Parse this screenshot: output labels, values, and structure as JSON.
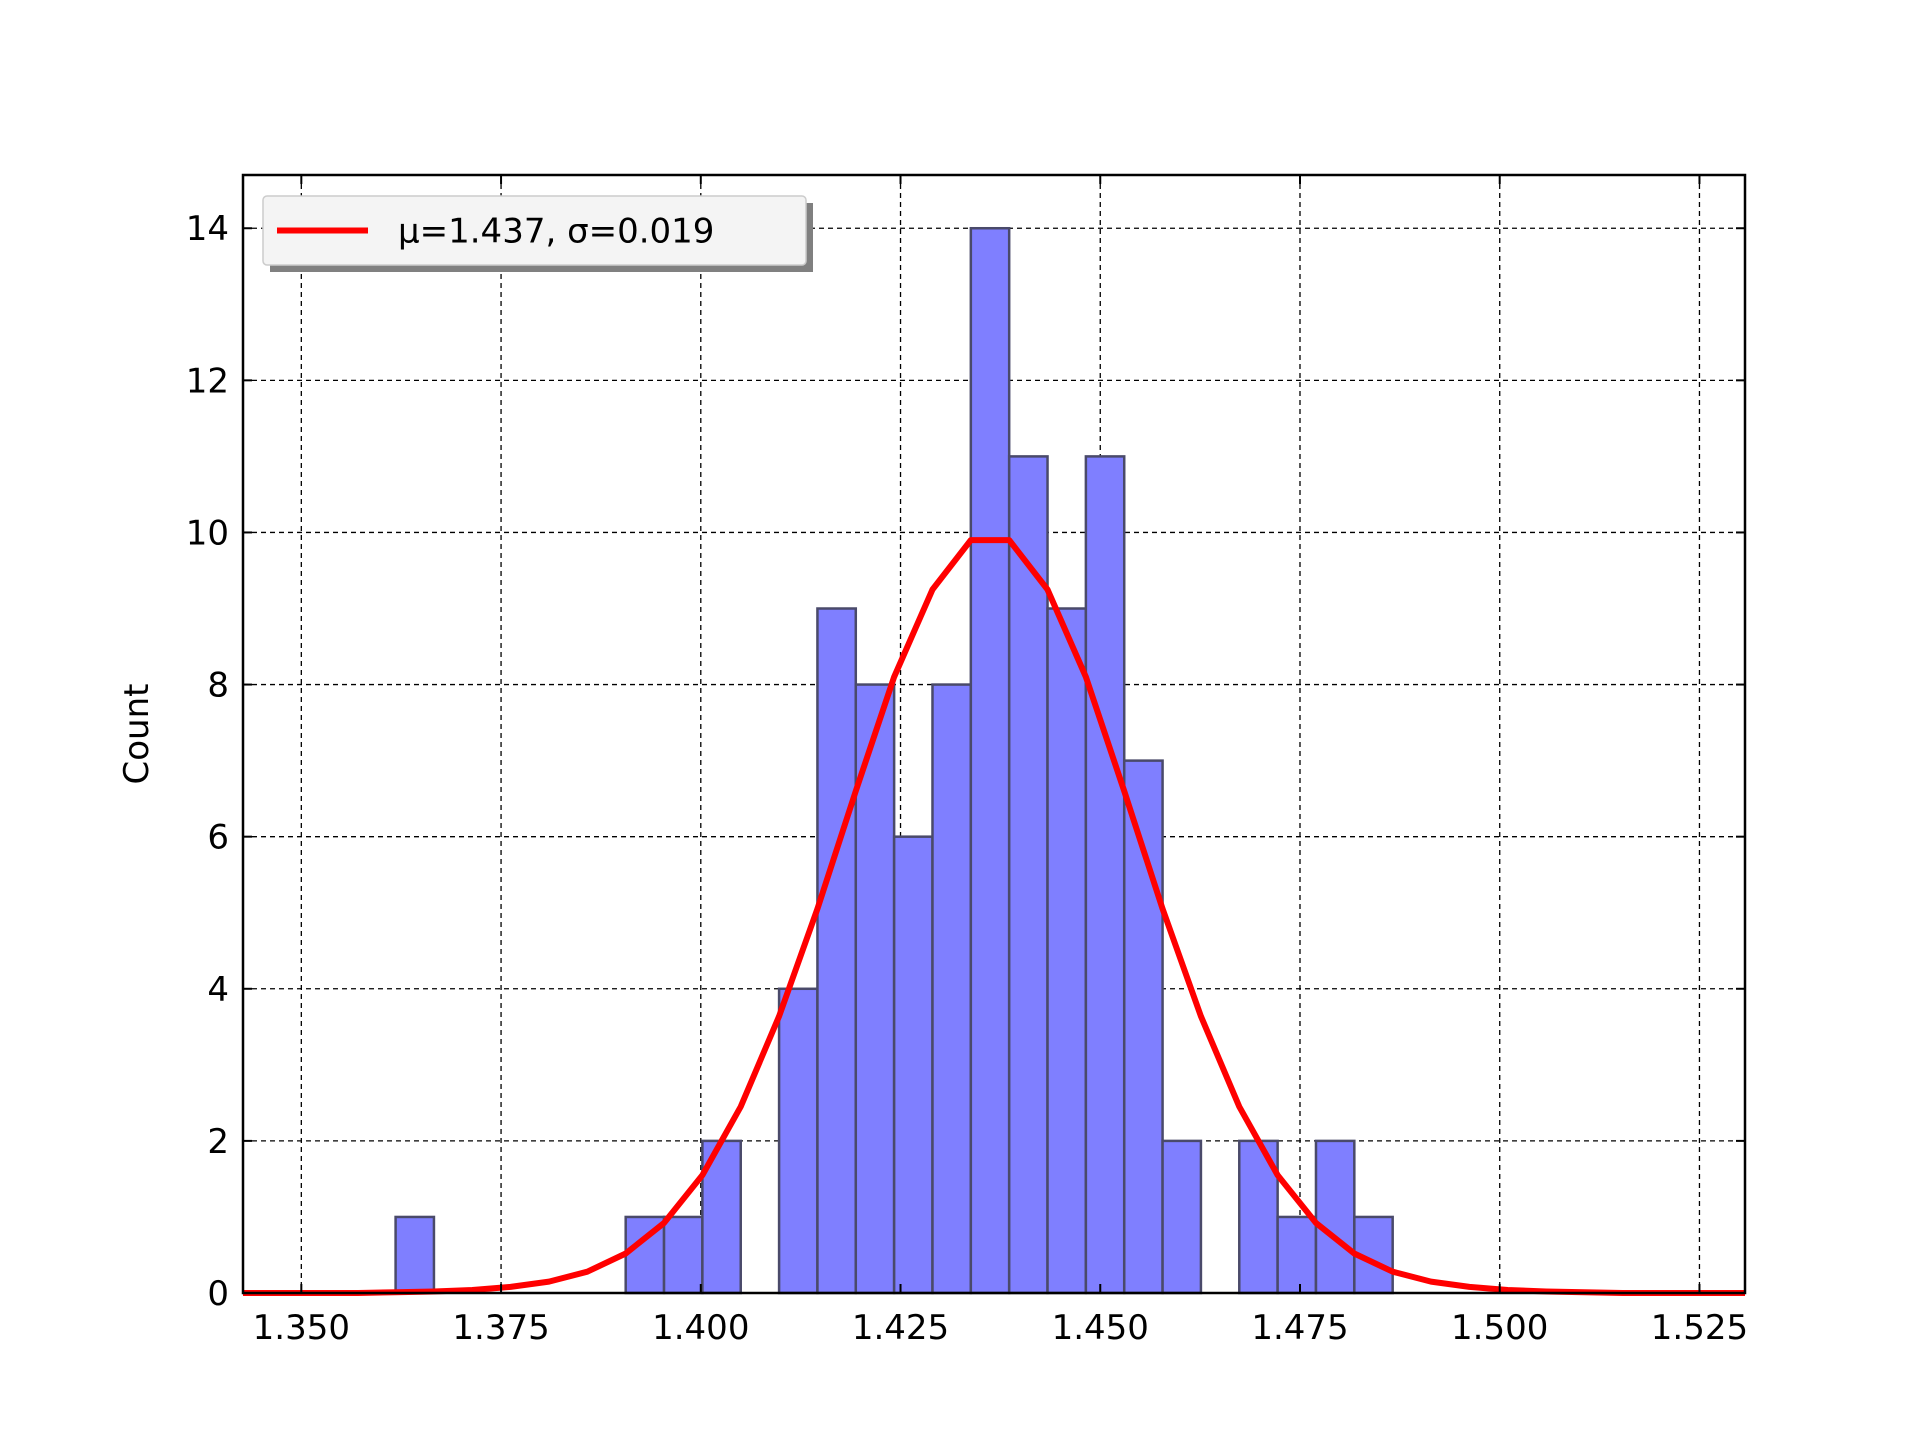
{
  "chart_data": {
    "type": "bar",
    "title": "",
    "xlabel": "",
    "ylabel": "Count",
    "xlim": [
      1.3427,
      1.5307
    ],
    "ylim": [
      0,
      14.7
    ],
    "grid": true,
    "legend_placement": "top-left",
    "x_ticks": [
      "1.350",
      "1.375",
      "1.400",
      "1.425",
      "1.450",
      "1.475",
      "1.500",
      "1.525"
    ],
    "y_ticks": [
      "0",
      "2",
      "4",
      "6",
      "8",
      "10",
      "12",
      "14"
    ],
    "histogram": {
      "bin_edges": [
        1.3618,
        1.3666,
        1.3714,
        1.3762,
        1.381,
        1.3858,
        1.3906,
        1.3954,
        1.4002,
        1.405,
        1.4098,
        1.4146,
        1.4194,
        1.4242,
        1.429,
        1.4338,
        1.4386,
        1.4434,
        1.4482,
        1.453,
        1.4578,
        1.4626,
        1.4674,
        1.4722,
        1.477,
        1.4818,
        1.4866
      ],
      "counts": [
        1,
        0,
        0,
        0,
        0,
        0,
        1,
        1,
        2,
        0,
        4,
        9,
        8,
        6,
        8,
        14,
        11,
        9,
        11,
        7,
        2,
        0,
        2,
        1,
        2,
        1
      ],
      "color": "#7f7fff",
      "edge_color": "#4a4a6a"
    },
    "series": [
      {
        "name": "μ=1.437, σ=0.019",
        "type": "line",
        "color": "#ff0000",
        "x": [
          1.3427,
          1.3475,
          1.3523,
          1.3571,
          1.3618,
          1.3666,
          1.3714,
          1.3762,
          1.381,
          1.3858,
          1.3906,
          1.3954,
          1.4002,
          1.405,
          1.4098,
          1.4146,
          1.4194,
          1.4242,
          1.429,
          1.4338,
          1.4386,
          1.4434,
          1.4482,
          1.453,
          1.4578,
          1.4626,
          1.4674,
          1.4722,
          1.477,
          1.4818,
          1.4866,
          1.4914,
          1.4962,
          1.501,
          1.5058,
          1.5106,
          1.5154,
          1.5202,
          1.525,
          1.5307
        ],
        "y": [
          0.0,
          0.0,
          0.0,
          0.0,
          0.01,
          0.02,
          0.04,
          0.08,
          0.15,
          0.28,
          0.52,
          0.92,
          1.55,
          2.45,
          3.64,
          5.05,
          6.6,
          8.1,
          9.25,
          9.9,
          9.9,
          9.25,
          8.1,
          6.6,
          5.05,
          3.64,
          2.45,
          1.55,
          0.92,
          0.52,
          0.28,
          0.15,
          0.08,
          0.04,
          0.02,
          0.01,
          0.0,
          0.0,
          0.0,
          0.0
        ]
      }
    ]
  }
}
